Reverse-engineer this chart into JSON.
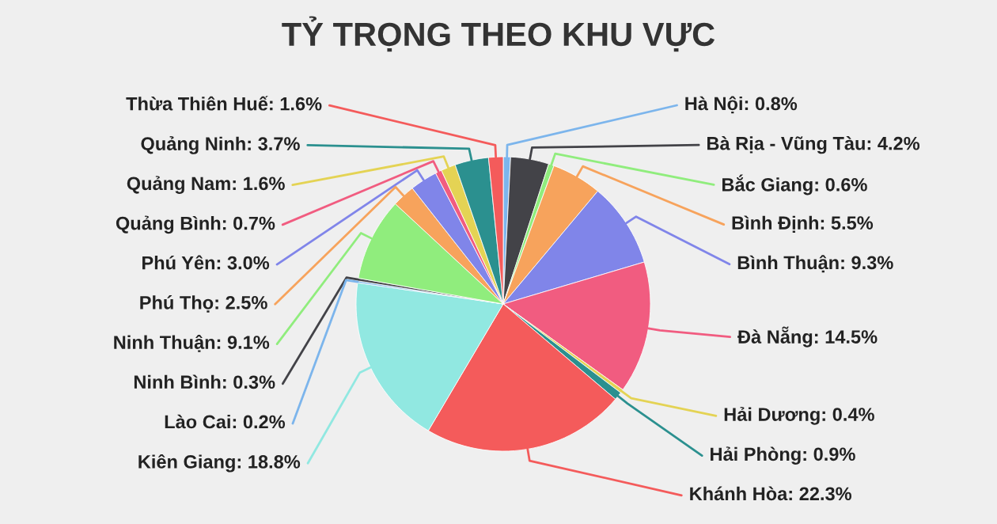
{
  "chart_data": {
    "type": "pie",
    "title": "TỶ TRỌNG THEO KHU VỰC",
    "categories": [
      "Hà Nội",
      "Bà Rịa - Vũng Tàu",
      "Bắc Giang",
      "Bình Định",
      "Bình Thuận",
      "Đà Nẵng",
      "Hải Dương",
      "Hải Phòng",
      "Khánh Hòa",
      "Kiên Giang",
      "Lào Cai",
      "Ninh Bình",
      "Ninh Thuận",
      "Phú Thọ",
      "Phú Yên",
      "Quảng Bình",
      "Quảng Nam",
      "Quảng Ninh",
      "Thừa Thiên Huế"
    ],
    "values": [
      0.8,
      4.2,
      0.6,
      5.5,
      9.3,
      14.5,
      0.4,
      0.9,
      22.3,
      18.8,
      0.2,
      0.3,
      9.1,
      2.5,
      3.0,
      0.7,
      1.6,
      3.7,
      1.6
    ],
    "value_labels": [
      "0.8%",
      "4.2%",
      "0.6%",
      "5.5%",
      "9.3%",
      "14.5%",
      "0.4%",
      "0.9%",
      "22.3%",
      "18.8%",
      "0.2%",
      "0.3%",
      "9.1%",
      "2.5%",
      "3.0%",
      "0.7%",
      "1.6%",
      "3.7%",
      "1.6%"
    ],
    "colors": [
      "#7cb5ec",
      "#434348",
      "#90ed7d",
      "#f7a35c",
      "#8085e9",
      "#f15c80",
      "#e4d354",
      "#2b908f",
      "#f45b5b",
      "#91e8e1",
      "#7cb5ec",
      "#434348",
      "#90ed7d",
      "#f7a35c",
      "#8085e9",
      "#f15c80",
      "#e4d354",
      "#2b908f",
      "#f45b5b"
    ],
    "legend": false
  }
}
